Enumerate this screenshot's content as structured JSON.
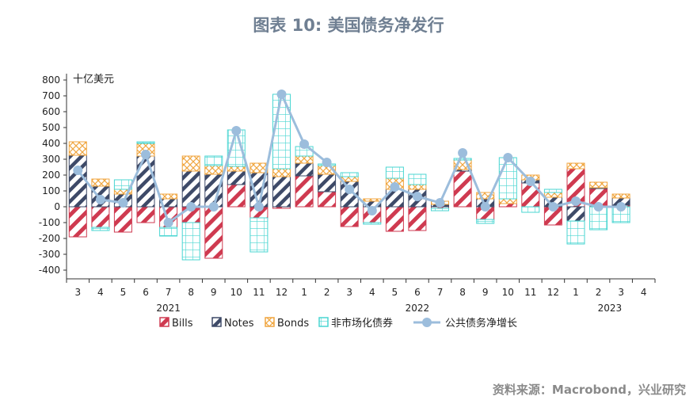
{
  "title": "图表 10: 美国债务净发行",
  "source": "资料来源：Macrobond，兴业研究",
  "chart_data": {
    "type": "bar",
    "unit_label": "十亿美元",
    "ylim": [
      -400,
      800
    ],
    "yticks": [
      800,
      700,
      600,
      500,
      400,
      300,
      200,
      100,
      0,
      -100,
      -200,
      -300,
      -400
    ],
    "x": [
      "3",
      "4",
      "5",
      "6",
      "7",
      "8",
      "9",
      "10",
      "11",
      "12",
      "1",
      "2",
      "3",
      "4",
      "5",
      "6",
      "7",
      "8",
      "9",
      "10",
      "11",
      "12",
      "1",
      "2",
      "3",
      "4"
    ],
    "year_labels": [
      {
        "label": "2021",
        "at": 4.5
      },
      {
        "label": "2022",
        "at": 15.5
      },
      {
        "label": "2023",
        "at": 24
      }
    ],
    "colors": {
      "bills": "#cf3a50",
      "notes": "#3e4a68",
      "bonds": "#f0a640",
      "nonmarket": "#49d6d2",
      "line": "#9cbddc"
    },
    "series": [
      {
        "name": "Bills",
        "values": [
          -190,
          -130,
          -160,
          -100,
          -130,
          -100,
          -325,
          140,
          -70,
          -10,
          195,
          95,
          -125,
          -100,
          -155,
          -150,
          -10,
          225,
          -80,
          20,
          150,
          -115,
          240,
          115,
          10,
          null
        ]
      },
      {
        "name": "Notes",
        "values": [
          325,
          130,
          80,
          320,
          50,
          225,
          205,
          85,
          215,
          190,
          80,
          110,
          160,
          35,
          110,
          110,
          15,
          10,
          50,
          0,
          20,
          60,
          -90,
          5,
          45,
          null
        ]
      },
      {
        "name": "Bonds",
        "values": [
          85,
          45,
          30,
          80,
          30,
          95,
          55,
          30,
          60,
          50,
          45,
          55,
          30,
          15,
          70,
          30,
          20,
          60,
          40,
          30,
          30,
          30,
          35,
          35,
          25,
          null
        ]
      },
      {
        "name": "非市场化债券",
        "values": [
          0,
          -20,
          60,
          10,
          -55,
          -235,
          60,
          230,
          -215,
          470,
          60,
          10,
          25,
          -10,
          70,
          65,
          -15,
          10,
          -25,
          260,
          -35,
          20,
          -145,
          -145,
          -100,
          null
        ]
      },
      {
        "name": "公共债务净增长",
        "type": "line",
        "values": [
          230,
          45,
          25,
          330,
          -100,
          0,
          0,
          480,
          0,
          710,
          395,
          280,
          110,
          -25,
          125,
          65,
          25,
          340,
          0,
          310,
          160,
          0,
          35,
          0,
          0,
          null
        ]
      }
    ]
  }
}
